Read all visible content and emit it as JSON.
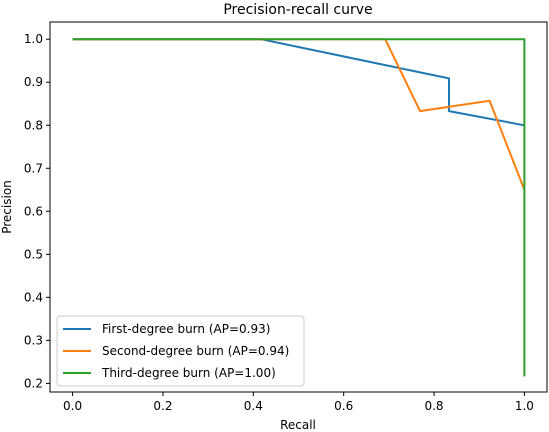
{
  "chart_data": {
    "type": "line",
    "title": "Precision-recall curve",
    "xlabel": "Recall",
    "ylabel": "Precision",
    "xlim": [
      -0.05,
      1.05
    ],
    "ylim": [
      0.18,
      1.04
    ],
    "xticks": [
      0.0,
      0.2,
      0.4,
      0.6,
      0.8,
      1.0
    ],
    "xtick_labels": [
      "0.0",
      "0.2",
      "0.4",
      "0.6",
      "0.8",
      "1.0"
    ],
    "yticks": [
      0.2,
      0.3,
      0.4,
      0.5,
      0.6,
      0.7,
      0.8,
      0.9,
      1.0
    ],
    "ytick_labels": [
      "0.2",
      "0.3",
      "0.4",
      "0.5",
      "0.6",
      "0.7",
      "0.8",
      "0.9",
      "1.0"
    ],
    "grid": false,
    "legend_position": "lower-left",
    "series": [
      {
        "name": "First-degree burn (AP=0.93)",
        "color": "#1f77b4",
        "x": [
          0.0,
          0.417,
          0.833,
          0.833,
          1.0,
          1.0
        ],
        "y": [
          1.0,
          1.0,
          0.909,
          0.833,
          0.8,
          0.8
        ]
      },
      {
        "name": "Second-degree burn (AP=0.94)",
        "color": "#ff7f0e",
        "x": [
          0.0,
          0.692,
          0.769,
          0.923,
          1.0
        ],
        "y": [
          1.0,
          1.0,
          0.833,
          0.857,
          0.65
        ]
      },
      {
        "name": "Third-degree burn (AP=1.00)",
        "color": "#2ca02c",
        "x": [
          0.0,
          1.0,
          1.0
        ],
        "y": [
          1.0,
          1.0,
          0.216
        ]
      }
    ]
  }
}
